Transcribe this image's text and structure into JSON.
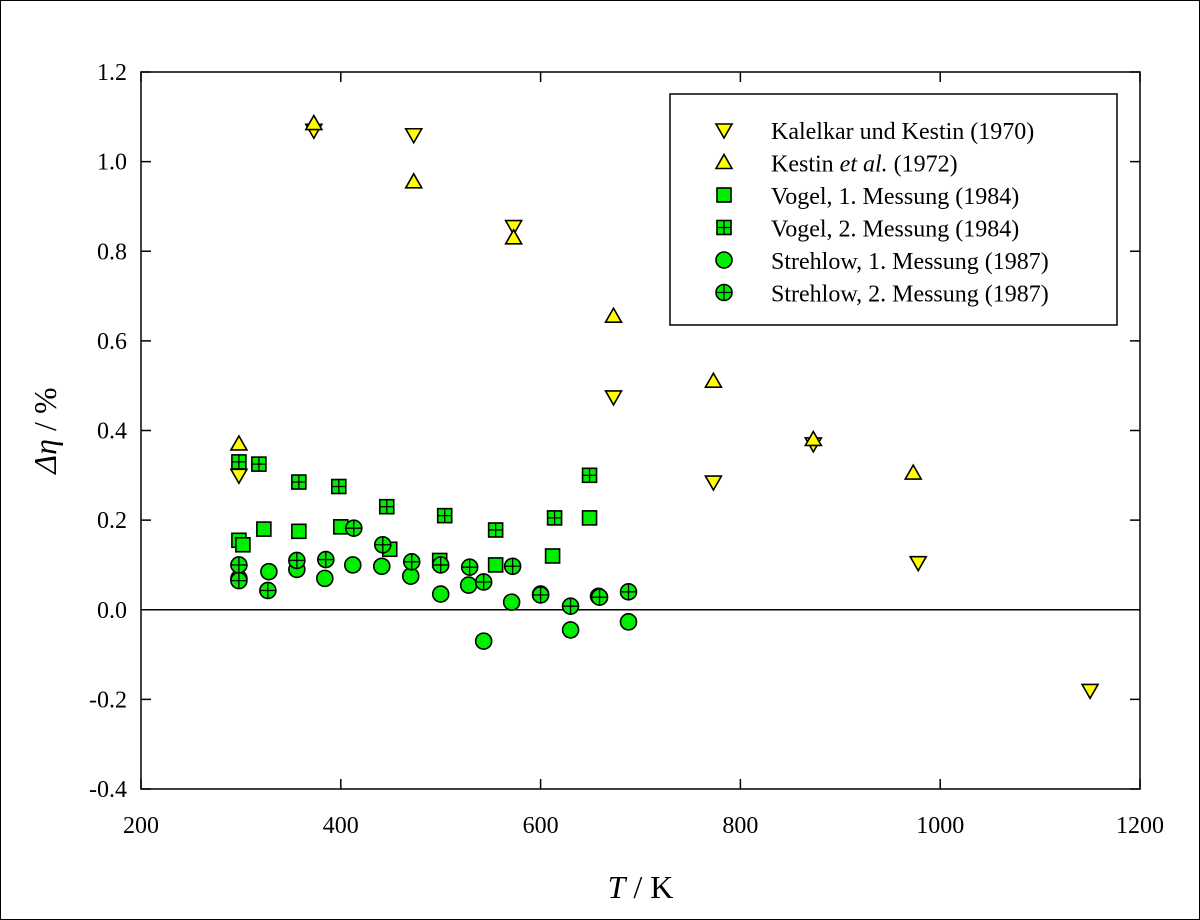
{
  "chart_data": {
    "type": "scatter",
    "title": "",
    "xlabel": {
      "symbol": "T",
      "unit": " / K"
    },
    "ylabel": {
      "symbol": "Δη",
      "unit": " / %"
    },
    "xlim": [
      200,
      1200
    ],
    "ylim": [
      -0.4,
      1.2
    ],
    "xticks": [
      200,
      400,
      600,
      800,
      1000,
      1200
    ],
    "xtick_labels": [
      "200",
      "400",
      "600",
      "800",
      "1000",
      "1200"
    ],
    "yticks": [
      -0.4,
      -0.2,
      0.0,
      0.2,
      0.4,
      0.6,
      0.8,
      1.0,
      1.2
    ],
    "ytick_labels": [
      "-0.4",
      "-0.2",
      "0.0",
      "0.2",
      "0.4",
      "0.6",
      "0.8",
      "1.0",
      "1.2"
    ],
    "zero_line": 0,
    "grid": false,
    "legend_position": "top-right",
    "colors": {
      "yellow": "#ffff00",
      "green": "#00ee00",
      "stroke": "#000000"
    },
    "series": [
      {
        "name": "Kalelkar und Kestin (1970)",
        "legend_parts": [
          {
            "text": "Kalelkar und Kestin (1970)",
            "italic": false
          }
        ],
        "marker": "triangle-down",
        "color": "#ffff00",
        "points": [
          [
            298,
            0.3
          ],
          [
            373,
            1.07
          ],
          [
            473,
            1.06
          ],
          [
            573,
            0.855
          ],
          [
            673,
            0.475
          ],
          [
            773,
            0.285
          ],
          [
            873,
            0.37
          ],
          [
            978,
            0.105
          ],
          [
            1150,
            -0.18
          ]
        ]
      },
      {
        "name": "Kestin et al. (1972)",
        "legend_parts": [
          {
            "text": "Kestin ",
            "italic": false
          },
          {
            "text": "et al.",
            "italic": true
          },
          {
            "text": " (1972)",
            "italic": false
          }
        ],
        "marker": "triangle-up",
        "color": "#ffff00",
        "points": [
          [
            298,
            0.37
          ],
          [
            373,
            1.085
          ],
          [
            473,
            0.955
          ],
          [
            573,
            0.83
          ],
          [
            673,
            0.655
          ],
          [
            773,
            0.51
          ],
          [
            873,
            0.38
          ],
          [
            973,
            0.305
          ]
        ]
      },
      {
        "name": "Vogel, 1. Messung (1984)",
        "legend_parts": [
          {
            "text": "Vogel, 1. Messung (1984)",
            "italic": false
          }
        ],
        "marker": "square",
        "color": "#00ee00",
        "points": [
          [
            298,
            0.155
          ],
          [
            302,
            0.145
          ],
          [
            323,
            0.18
          ],
          [
            358,
            0.175
          ],
          [
            400,
            0.185
          ],
          [
            449,
            0.135
          ],
          [
            499,
            0.11
          ],
          [
            555,
            0.1
          ],
          [
            612,
            0.12
          ],
          [
            649,
            0.205
          ]
        ]
      },
      {
        "name": "Vogel, 2. Messung (1984)",
        "legend_parts": [
          {
            "text": "Vogel, 2. Messung (1984)",
            "italic": false
          }
        ],
        "marker": "square-plus",
        "color": "#00ee00",
        "points": [
          [
            298,
            0.33
          ],
          [
            318,
            0.325
          ],
          [
            358,
            0.285
          ],
          [
            398,
            0.275
          ],
          [
            446,
            0.23
          ],
          [
            504,
            0.21
          ],
          [
            555,
            0.178
          ],
          [
            614,
            0.205
          ],
          [
            649,
            0.3
          ]
        ]
      },
      {
        "name": "Strehlow, 1. Messung (1987)",
        "legend_parts": [
          {
            "text": "Strehlow, 1. Messung (1987)",
            "italic": false
          }
        ],
        "marker": "circle",
        "color": "#00ee00",
        "points": [
          [
            298,
            0.07
          ],
          [
            328,
            0.085
          ],
          [
            356,
            0.09
          ],
          [
            384,
            0.07
          ],
          [
            412,
            0.1
          ],
          [
            441,
            0.097
          ],
          [
            470,
            0.075
          ],
          [
            500,
            0.035
          ],
          [
            528,
            0.055
          ],
          [
            543,
            -0.07
          ],
          [
            571,
            0.017
          ],
          [
            600,
            0.035
          ],
          [
            630,
            -0.045
          ],
          [
            658,
            0.03
          ],
          [
            688,
            -0.027
          ]
        ]
      },
      {
        "name": "Strehlow, 2. Messung (1987)",
        "legend_parts": [
          {
            "text": "Strehlow, 2. Messung (1987)",
            "italic": false
          }
        ],
        "marker": "circle-plus",
        "color": "#00ee00",
        "points": [
          [
            298,
            0.1
          ],
          [
            298,
            0.065
          ],
          [
            327,
            0.043
          ],
          [
            356,
            0.11
          ],
          [
            385,
            0.112
          ],
          [
            413,
            0.182
          ],
          [
            442,
            0.145
          ],
          [
            471,
            0.107
          ],
          [
            500,
            0.1
          ],
          [
            529,
            0.095
          ],
          [
            543,
            0.062
          ],
          [
            572,
            0.097
          ],
          [
            600,
            0.033
          ],
          [
            630,
            0.008
          ],
          [
            659,
            0.028
          ],
          [
            688,
            0.04
          ]
        ]
      }
    ]
  }
}
